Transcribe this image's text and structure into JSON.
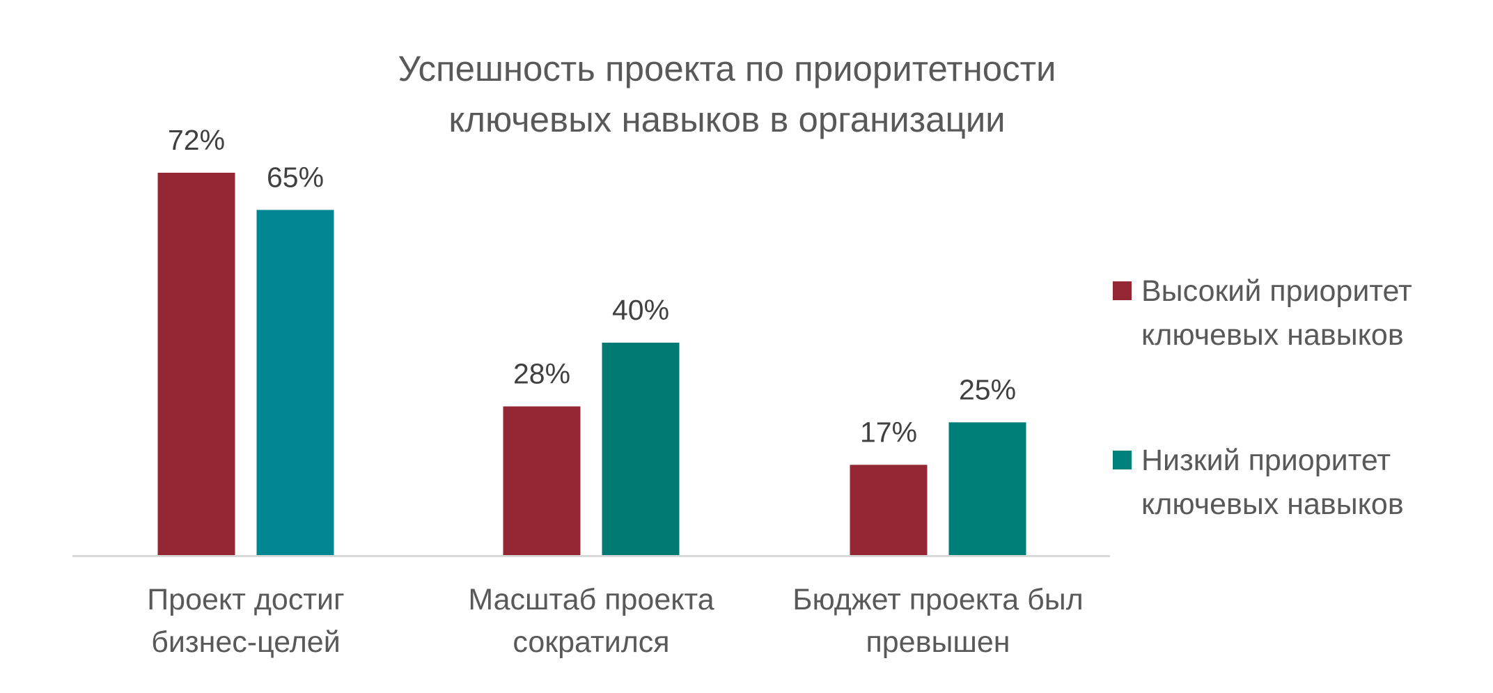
{
  "chart_data": {
    "type": "bar",
    "title_lines": [
      "Успешность проекта по приоритетности",
      "ключевых навыков в организации"
    ],
    "categories": [
      [
        "Проект достиг",
        "бизнес-целей"
      ],
      [
        "Масштаб проекта",
        "сократился"
      ],
      [
        "Бюджет проекта был",
        "превышен"
      ]
    ],
    "series": [
      {
        "name_lines": [
          "Высокий приоритет",
          "ключевых навыков"
        ],
        "color": "#952734",
        "values": [
          72,
          28,
          17
        ],
        "labels": [
          "72%",
          "28%",
          "17%"
        ],
        "bar_colors": [
          "#952734",
          "#952734",
          "#952734"
        ]
      },
      {
        "name_lines": [
          "Низкий приоритет",
          "ключевых навыков"
        ],
        "color": "#00807A",
        "values": [
          65,
          40,
          25
        ],
        "labels": [
          "65%",
          "40%",
          "25%"
        ],
        "bar_colors": [
          "#008792",
          "#007A73",
          "#007E78"
        ]
      }
    ],
    "ylim": [
      0,
      80
    ],
    "grid": false,
    "legend_position": "right",
    "xlabel": "",
    "ylabel": "",
    "colors": {
      "text": "#595959",
      "axis": "#D9D9D9"
    }
  }
}
